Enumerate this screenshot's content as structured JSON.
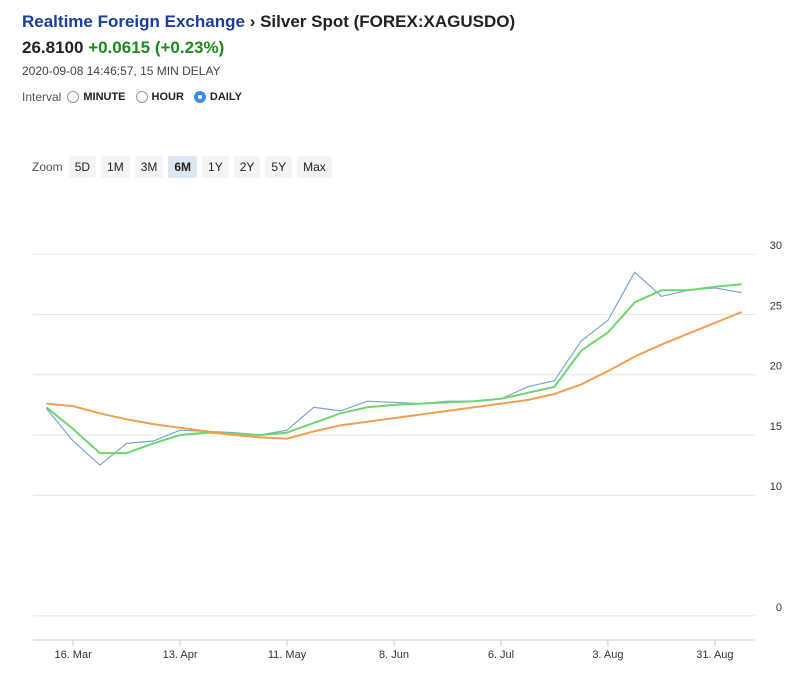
{
  "header": {
    "exchange": "Realtime Foreign Exchange",
    "separator": "›",
    "instrument": "Silver Spot (FOREX:XAGUSDO)",
    "price": "26.8100",
    "change": "+0.0615 (+0.23%)",
    "timestamp": "2020-09-08 14:46:57, 15 MIN DELAY"
  },
  "controls": {
    "interval_label": "Interval",
    "intervals": [
      "MINUTE",
      "HOUR",
      "DAILY"
    ],
    "interval_selected": 2,
    "zoom_label": "Zoom",
    "zooms": [
      "5D",
      "1M",
      "3M",
      "6M",
      "1Y",
      "2Y",
      "5Y",
      "Max"
    ],
    "zoom_selected": 3
  },
  "chart_data": {
    "type": "line",
    "categories": [
      null,
      "16. Mar",
      null,
      null,
      null,
      "13. Apr",
      null,
      null,
      null,
      "11. May",
      null,
      null,
      null,
      "8. Jun",
      null,
      null,
      null,
      "6. Jul",
      null,
      null,
      null,
      "3. Aug",
      null,
      null,
      null,
      "31. Aug",
      null
    ],
    "series": [
      {
        "color": "#7ea6cc",
        "values": [
          17.2,
          14.5,
          12.5,
          14.3,
          14.5,
          15.4,
          15.3,
          15.2,
          15.0,
          15.4,
          17.3,
          17.0,
          17.8,
          17.7,
          17.6,
          17.8,
          17.8,
          18.0,
          19.0,
          19.5,
          22.8,
          24.5,
          28.5,
          26.5,
          27.0,
          27.2,
          26.8
        ]
      },
      {
        "color": "#6fd66f",
        "values": [
          17.3,
          15.5,
          13.5,
          13.5,
          14.3,
          15.0,
          15.2,
          15.1,
          15.0,
          15.2,
          16.0,
          16.8,
          17.3,
          17.5,
          17.6,
          17.7,
          17.8,
          18.0,
          18.5,
          19.0,
          22.0,
          23.5,
          26.0,
          27.0,
          27.0,
          27.3,
          27.5
        ]
      },
      {
        "color": "#f0a050",
        "values": [
          17.6,
          17.4,
          16.8,
          16.3,
          15.9,
          15.6,
          15.3,
          15.0,
          14.8,
          14.7,
          15.3,
          15.8,
          16.1,
          16.4,
          16.7,
          17.0,
          17.3,
          17.6,
          17.9,
          18.4,
          19.2,
          20.3,
          21.5,
          22.5,
          23.4,
          24.3,
          25.2
        ]
      }
    ],
    "ylim": [
      -2,
      32
    ],
    "yticks": [
      0,
      10,
      15,
      20,
      25,
      30
    ],
    "grid": true
  }
}
